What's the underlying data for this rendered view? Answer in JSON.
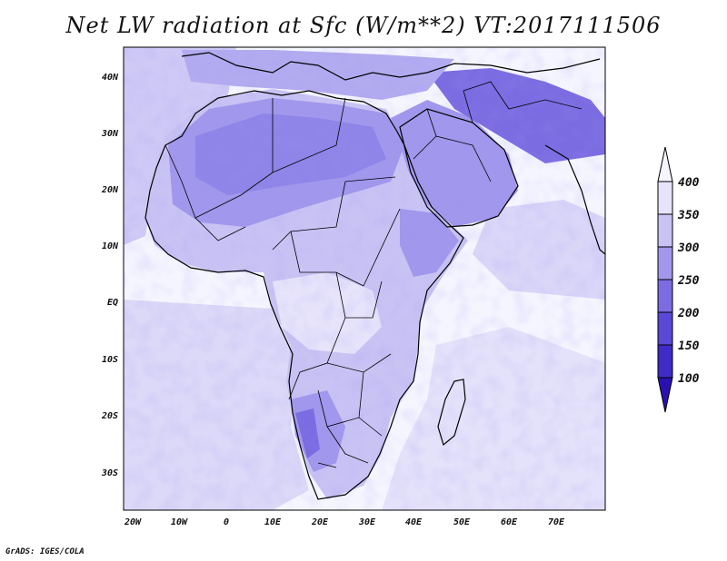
{
  "title": "Net LW radiation at Sfc (W/m**2) VT:2017111506",
  "credit": "GrADS: IGES/COLA",
  "map": {
    "lat_labels": [
      "40N",
      "30N",
      "20N",
      "10N",
      "EQ",
      "10S",
      "20S",
      "30S"
    ],
    "lon_labels": [
      "20W",
      "10W",
      "0",
      "10E",
      "20E",
      "30E",
      "40E",
      "50E",
      "60E",
      "70E"
    ]
  },
  "colorbar": {
    "levels": [
      "100",
      "150",
      "200",
      "250",
      "300",
      "350",
      "400"
    ],
    "colors": [
      "#2a10b0",
      "#3f2cc8",
      "#5a49d6",
      "#7b6ce2",
      "#a197ec",
      "#c9c3f4",
      "#e6e3fb",
      "#f6f5ff"
    ]
  },
  "colors": {
    "ocean_light": "#f5f5ff",
    "land_field": "#c9c3f4",
    "desert": "#a197ec",
    "high": "#7b6ce2",
    "boundary": "#000000"
  }
}
